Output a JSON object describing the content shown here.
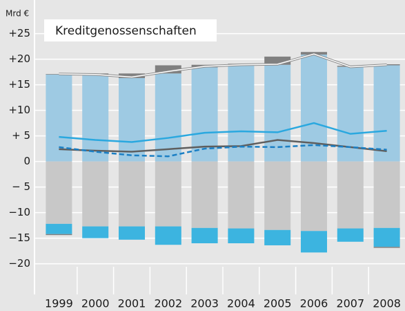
{
  "chart_data": {
    "type": "bar",
    "title": "Kreditgenossenschaften",
    "y_unit": "Mrd €",
    "categories": [
      "1999",
      "2000",
      "2001",
      "2002",
      "2003",
      "2004",
      "2005",
      "2006",
      "2007",
      "2008"
    ],
    "ylim": [
      -26,
      29
    ],
    "yticks": [
      {
        "value": 25,
        "label": "+25"
      },
      {
        "value": 20,
        "label": "+20"
      },
      {
        "value": 15,
        "label": "+15"
      },
      {
        "value": 10,
        "label": "+10"
      },
      {
        "value": 5,
        "label": "+ 5"
      },
      0,
      {
        "value": -5,
        "label": "− 5"
      },
      {
        "value": -10,
        "label": "−10"
      },
      {
        "value": -15,
        "label": "−15"
      },
      {
        "value": -20,
        "label": "−20"
      }
    ],
    "grid": true,
    "series": [
      {
        "type": "bar",
        "color": "#9ecae3",
        "values": [
          17.0,
          16.9,
          16.3,
          17.2,
          18.4,
          18.9,
          18.9,
          20.9,
          18.5,
          18.8
        ]
      },
      {
        "type": "bar",
        "color": "#808080",
        "values": [
          0.1,
          0.3,
          0.9,
          1.6,
          0.5,
          0.2,
          1.6,
          0.5,
          0.2,
          0.2
        ]
      },
      {
        "type": "bar",
        "color": "#c8c8c8",
        "values": [
          -12.2,
          -12.7,
          -12.7,
          -12.7,
          -13.0,
          -13.1,
          -13.4,
          -13.6,
          -13.1,
          -13.0
        ]
      },
      {
        "type": "bar",
        "color": "#3cb4e0",
        "values": [
          -2.0,
          -2.3,
          -2.6,
          -3.6,
          -3.0,
          -2.9,
          -3.0,
          -4.2,
          -2.6,
          -3.7
        ]
      },
      {
        "type": "bar",
        "color": "#808080",
        "values": [
          -0.2,
          0,
          0,
          0,
          0,
          0,
          0,
          0,
          0,
          -0.2
        ]
      },
      {
        "type": "line",
        "style": "double",
        "color": "#8a8a8a",
        "values": [
          17.1,
          17.0,
          16.5,
          17.6,
          18.6,
          18.9,
          19.0,
          21.0,
          18.5,
          18.9
        ]
      },
      {
        "type": "line",
        "style": "solid",
        "color": "#2aa8df",
        "values": [
          4.8,
          4.2,
          3.8,
          4.6,
          5.6,
          5.9,
          5.7,
          7.5,
          5.4,
          6.0
        ]
      },
      {
        "type": "line",
        "style": "solid",
        "color": "#5e5e5e",
        "values": [
          2.4,
          2.1,
          1.9,
          2.4,
          2.9,
          3.0,
          4.2,
          3.6,
          2.8,
          2.0
        ]
      },
      {
        "type": "line",
        "style": "dashed",
        "color": "#1b7fc4",
        "values": [
          2.8,
          1.9,
          1.2,
          1.0,
          2.5,
          2.9,
          2.8,
          3.2,
          2.8,
          2.3
        ]
      }
    ]
  }
}
